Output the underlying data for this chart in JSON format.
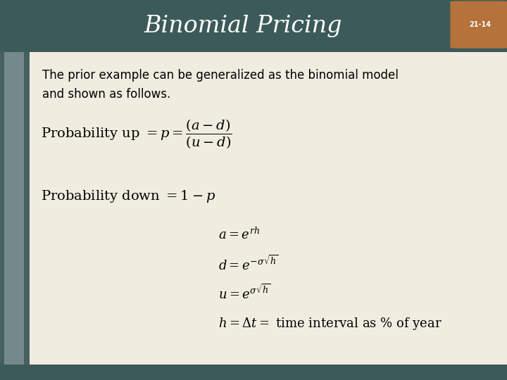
{
  "title": "Binomial Pricing",
  "slide_number": "21-14",
  "header_bg": "#3d5a5a",
  "header_text_color": "#ffffff",
  "badge_color": "#b5723a",
  "body_bg": "#f0ede0",
  "left_strip_dark": "#4a6464",
  "left_strip_light": "#b0c0c0",
  "body_text_color": "#000000",
  "bottom_bar_color": "#8a9ea0",
  "sep_color": "#8a9ea0",
  "title_fontsize": 24,
  "intro_fontsize": 12,
  "eq_fontsize": 13,
  "eq_small_fontsize": 12
}
